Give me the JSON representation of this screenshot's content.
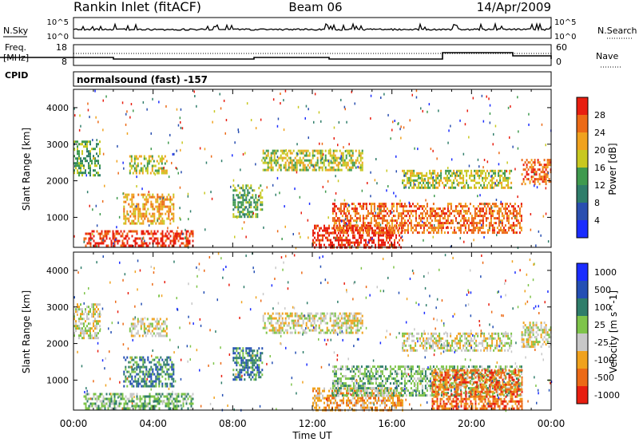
{
  "header": {
    "station_title": "Rankin Inlet (fitACF)",
    "beam": "Beam 06",
    "date": "14/Apr/2009"
  },
  "nsky_panel": {
    "left_label": "N.Sky",
    "right_label": "N.Search",
    "left_ticks": [
      "10^5",
      "10^0"
    ],
    "right_ticks": [
      "10^5",
      "10^0"
    ]
  },
  "freq_panel": {
    "left_label_line1": "Freq.",
    "left_label_line2": "[MHz]",
    "right_label": "Nave",
    "left_ticks": [
      "18",
      "8"
    ],
    "right_ticks": [
      "60",
      "0"
    ]
  },
  "cpid_panel": {
    "label": "CPID",
    "text": "normalsound (fast) -157"
  },
  "time_axis": {
    "ticks": [
      "00:00",
      "04:00",
      "08:00",
      "12:00",
      "16:00",
      "20:00",
      "00:00"
    ],
    "label": "Time UT"
  },
  "colors": {
    "power_scale": [
      "#1a2cff",
      "#2a4fb0",
      "#2f7d6a",
      "#3f9a4e",
      "#c8c820",
      "#f0a21e",
      "#ec6a16",
      "#e81e10"
    ],
    "velocity_scale": [
      "#1a2cff",
      "#244fb4",
      "#2f7d6a",
      "#7ec44a",
      "#c8c8c8",
      "#f0a21e",
      "#ec6a16",
      "#e81e10"
    ]
  },
  "chart_data": [
    {
      "type": "heatmap",
      "title": "",
      "xlabel": "",
      "ylabel": "Slant Range [km]",
      "xlim": [
        0,
        24
      ],
      "ylim": [
        180,
        4500
      ],
      "y_ticks": [
        "1000",
        "2000",
        "3000",
        "4000"
      ],
      "colorbar_label": "Power [dB]",
      "colorbar_ticks": [
        "28",
        "24",
        "20",
        "16",
        "12",
        "8",
        "4"
      ],
      "regions": [
        {
          "t": [
            0.0,
            1.3
          ],
          "r": [
            2150,
            3100
          ],
          "level": 3
        },
        {
          "t": [
            2.8,
            4.7
          ],
          "r": [
            2200,
            2700
          ],
          "level": 4
        },
        {
          "t": [
            2.5,
            5.0
          ],
          "r": [
            850,
            1650
          ],
          "level": 5
        },
        {
          "t": [
            0.5,
            6.0
          ],
          "r": [
            220,
            650
          ],
          "level": 7
        },
        {
          "t": [
            8.0,
            9.5
          ],
          "r": [
            1000,
            1900
          ],
          "level": 3
        },
        {
          "t": [
            9.5,
            14.5
          ],
          "r": [
            2300,
            2850
          ],
          "level": 4
        },
        {
          "t": [
            12.0,
            16.5
          ],
          "r": [
            200,
            800
          ],
          "level": 7
        },
        {
          "t": [
            13.0,
            22.5
          ],
          "r": [
            600,
            1400
          ],
          "level": 6
        },
        {
          "t": [
            16.5,
            22.0
          ],
          "r": [
            1800,
            2300
          ],
          "level": 4
        },
        {
          "t": [
            22.5,
            24.0
          ],
          "r": [
            1900,
            2600
          ],
          "level": 6
        }
      ]
    },
    {
      "type": "heatmap",
      "title": "",
      "xlabel": "Time UT",
      "ylabel": "Slant Range [km]",
      "xlim": [
        0,
        24
      ],
      "ylim": [
        180,
        4500
      ],
      "y_ticks": [
        "1000",
        "2000",
        "3000",
        "4000"
      ],
      "colorbar_label": "Velocity [m s^-1]",
      "colorbar_ticks": [
        "1000",
        "500",
        "100",
        "25",
        "-25",
        "-100",
        "-500",
        "-1000"
      ],
      "regions": [
        {
          "t": [
            0.0,
            1.3
          ],
          "r": [
            2150,
            3100
          ],
          "level": 4
        },
        {
          "t": [
            2.8,
            4.7
          ],
          "r": [
            2200,
            2700
          ],
          "level": 4
        },
        {
          "t": [
            2.5,
            5.0
          ],
          "r": [
            850,
            1650
          ],
          "level": 2
        },
        {
          "t": [
            0.5,
            6.0
          ],
          "r": [
            220,
            650
          ],
          "level": 3
        },
        {
          "t": [
            8.0,
            9.5
          ],
          "r": [
            1000,
            1900
          ],
          "level": 2
        },
        {
          "t": [
            9.5,
            14.5
          ],
          "r": [
            2300,
            2850
          ],
          "level": 4
        },
        {
          "t": [
            12.0,
            16.5
          ],
          "r": [
            200,
            800
          ],
          "level": 5
        },
        {
          "t": [
            13.0,
            22.5
          ],
          "r": [
            600,
            1400
          ],
          "level": 3
        },
        {
          "t": [
            16.5,
            22.0
          ],
          "r": [
            1800,
            2300
          ],
          "level": 4
        },
        {
          "t": [
            18.0,
            22.5
          ],
          "r": [
            200,
            1300
          ],
          "level": 6
        },
        {
          "t": [
            22.5,
            24.0
          ],
          "r": [
            1900,
            2600
          ],
          "level": 4
        }
      ]
    }
  ]
}
